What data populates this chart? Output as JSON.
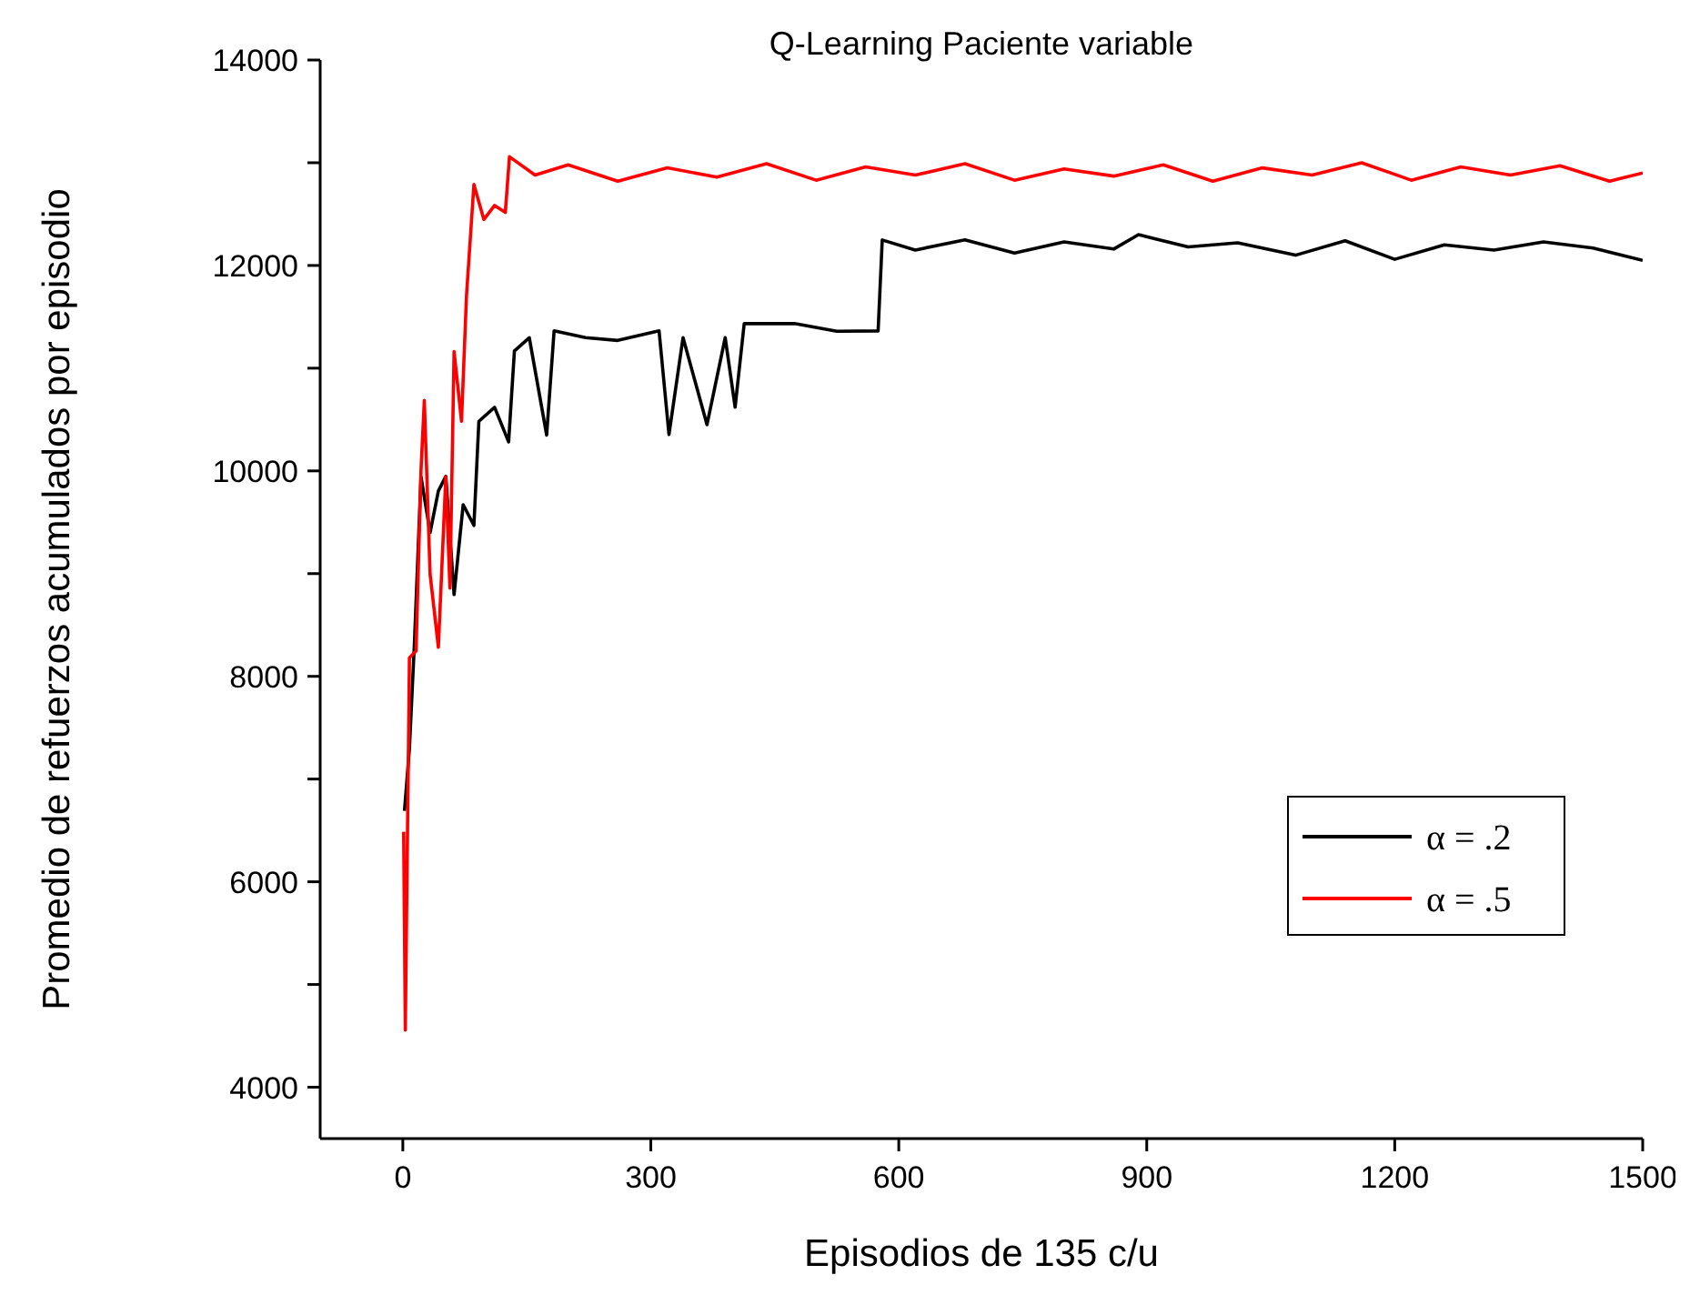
{
  "chart_data": {
    "type": "line",
    "title": "Q-Learning Paciente variable",
    "xlabel": "Episodios de 135 c/u",
    "ylabel": "Promedio de refuerzos acumulados por episodio",
    "xlim": [
      -100,
      1500
    ],
    "xticks": [
      0,
      300,
      600,
      900,
      1200,
      1500
    ],
    "ylim": [
      3500,
      14000
    ],
    "yticks": [
      4000,
      {
        "value": 5000,
        "label": null
      },
      6000,
      {
        "value": 7000,
        "label": null
      },
      8000,
      {
        "value": 9000,
        "label": null
      },
      10000,
      {
        "value": 11000,
        "label": null
      },
      12000,
      {
        "value": 13000,
        "label": null
      },
      14000
    ],
    "grid": false,
    "legend": "right",
    "marker": "none",
    "line_style": "solid",
    "series": [
      {
        "name": "α = .2",
        "color": "#000000",
        "x": [
          2,
          8,
          14,
          22,
          33,
          43,
          52,
          62,
          73,
          86,
          92,
          111,
          128,
          135,
          153,
          174,
          183,
          221,
          260,
          310,
          322,
          339,
          368,
          390,
          402,
          413,
          474,
          525,
          575,
          580,
          620,
          680,
          740,
          800,
          860,
          890,
          950,
          1010,
          1080,
          1140,
          1200,
          1260,
          1320,
          1380,
          1440,
          1500
        ],
        "values": [
          6690,
          7300,
          8318,
          9942,
          9400,
          9805,
          9947,
          8796,
          9671,
          9469,
          10483,
          10619,
          10283,
          11168,
          11297,
          10349,
          11363,
          11297,
          11270,
          11363,
          10354,
          11297,
          10450,
          11297,
          10620,
          11434,
          11434,
          11360,
          11363,
          12248,
          12150,
          12250,
          12120,
          12230,
          12160,
          12300,
          12180,
          12220,
          12100,
          12240,
          12060,
          12200,
          12150,
          12230,
          12170,
          12050
        ]
      },
      {
        "name": "α = .5",
        "color": "#ff0000",
        "x": [
          1,
          3,
          8,
          16,
          22,
          26,
          33,
          43,
          52,
          57,
          62,
          71,
          77,
          86,
          98,
          111,
          124,
          129,
          160,
          200,
          260,
          320,
          380,
          440,
          500,
          560,
          620,
          680,
          740,
          800,
          860,
          920,
          980,
          1040,
          1100,
          1160,
          1220,
          1280,
          1340,
          1400,
          1460,
          1500
        ],
        "values": [
          6487,
          4557,
          8180,
          8248,
          10010,
          10687,
          8993,
          8283,
          9942,
          8858,
          11161,
          10483,
          11703,
          12788,
          12448,
          12584,
          12517,
          13058,
          12880,
          12980,
          12820,
          12950,
          12860,
          12990,
          12830,
          12960,
          12880,
          12990,
          12830,
          12940,
          12870,
          12980,
          12820,
          12950,
          12880,
          13000,
          12830,
          12960,
          12880,
          12970,
          12820,
          12900
        ]
      }
    ]
  }
}
